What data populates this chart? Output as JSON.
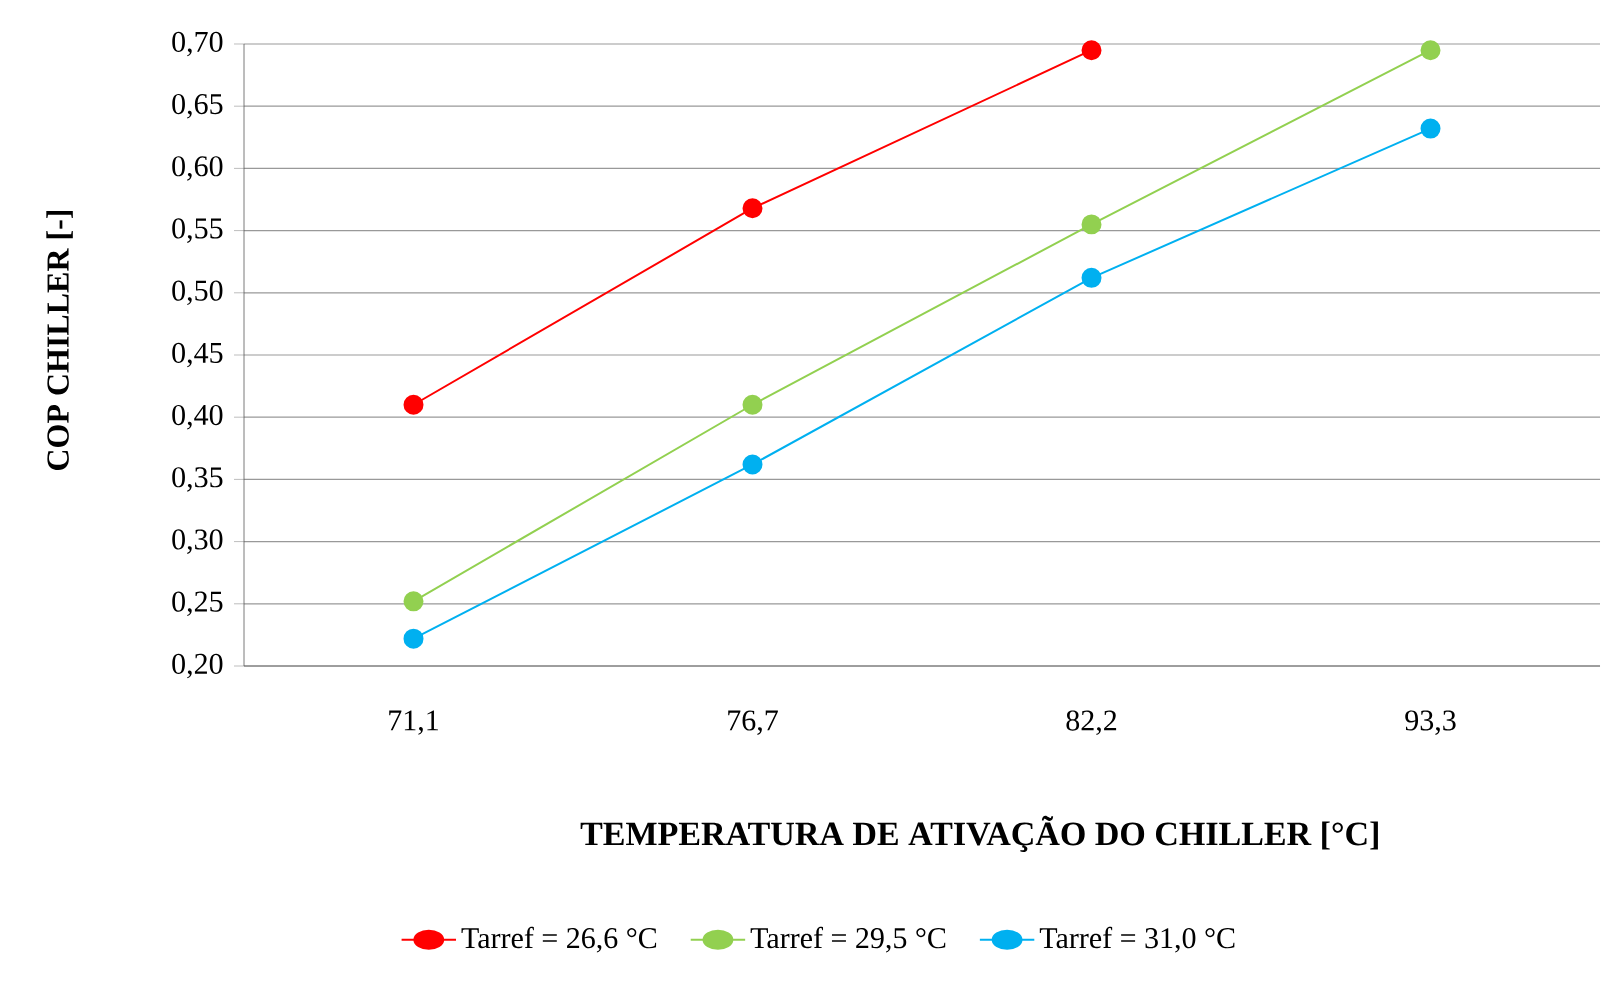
{
  "chart_data": {
    "type": "line",
    "xlabel": "TEMPERATURA DE ATIVAÇÃO DO CHILLER [°C]",
    "ylabel": "COP CHILLER [-]",
    "categories": [
      "71,1",
      "76,7",
      "82,2",
      "93,3"
    ],
    "series": [
      {
        "name": "Tarref = 26,6 °C",
        "color": "#ff0000",
        "values": [
          0.41,
          0.568,
          0.695,
          null
        ]
      },
      {
        "name": "Tarref = 29,5 °C",
        "color": "#92d050",
        "values": [
          0.252,
          0.41,
          0.555,
          0.695
        ]
      },
      {
        "name": "Tarref = 31,0 °C",
        "color": "#00b0f0",
        "values": [
          0.222,
          0.362,
          0.512,
          0.632
        ]
      }
    ],
    "ylim": [
      0.2,
      0.7
    ],
    "yticks": [
      {
        "value": 0.2,
        "label": "0,20"
      },
      {
        "value": 0.25,
        "label": "0,25"
      },
      {
        "value": 0.3,
        "label": "0,30"
      },
      {
        "value": 0.35,
        "label": "0,35"
      },
      {
        "value": 0.4,
        "label": "0,40"
      },
      {
        "value": 0.45,
        "label": "0,45"
      },
      {
        "value": 0.5,
        "label": "0,50"
      },
      {
        "value": 0.55,
        "label": "0,55"
      },
      {
        "value": 0.6,
        "label": "0,60"
      },
      {
        "value": 0.65,
        "label": "0,65"
      },
      {
        "value": 0.7,
        "label": "0,70"
      }
    ],
    "grid": "y",
    "legend": "bottom",
    "marker": "circle",
    "line_style": "solid"
  }
}
